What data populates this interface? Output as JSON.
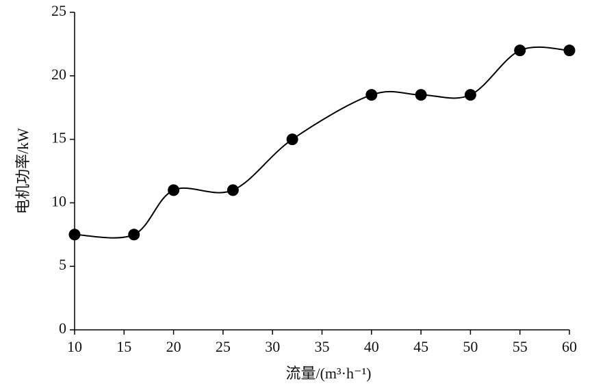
{
  "chart_data": {
    "type": "line",
    "x_label": "流量/(m³·h⁻¹)",
    "y_label": "电机功率/kW",
    "x": [
      10,
      16,
      20,
      26,
      32,
      40,
      45,
      50,
      55,
      60
    ],
    "series": [
      {
        "color": "#000000",
        "values": [
          7.5,
          7.5,
          11,
          11,
          15,
          18.5,
          18.5,
          18.5,
          22,
          22
        ]
      }
    ],
    "xlim": [
      10,
      60
    ],
    "xticks": [
      10,
      15,
      20,
      25,
      30,
      35,
      40,
      45,
      50,
      55,
      60
    ],
    "ylim": [
      0,
      25
    ],
    "yticks": [
      0,
      5,
      10,
      15,
      20,
      25
    ],
    "smooth": true,
    "markers": true
  }
}
